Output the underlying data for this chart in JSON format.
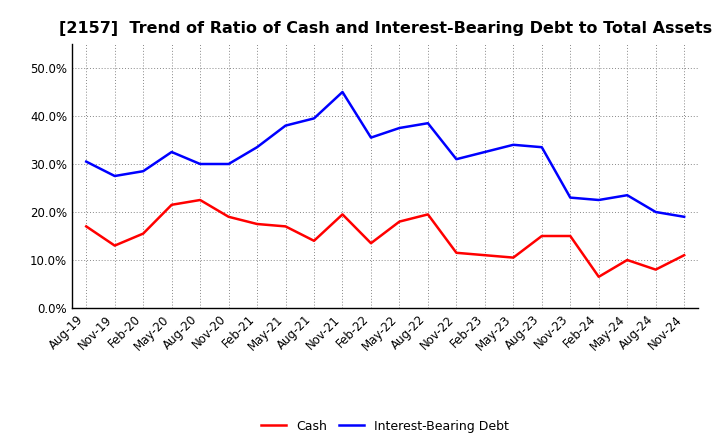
{
  "title": "[2157]  Trend of Ratio of Cash and Interest-Bearing Debt to Total Assets",
  "labels": [
    "Aug-19",
    "Nov-19",
    "Feb-20",
    "May-20",
    "Aug-20",
    "Nov-20",
    "Feb-21",
    "May-21",
    "Aug-21",
    "Nov-21",
    "Feb-22",
    "May-22",
    "Aug-22",
    "Nov-22",
    "Feb-23",
    "May-23",
    "Aug-23",
    "Nov-23",
    "Feb-24",
    "May-24",
    "Aug-24",
    "Nov-24"
  ],
  "cash": [
    0.17,
    0.13,
    0.155,
    0.215,
    0.225,
    0.19,
    0.175,
    0.17,
    0.14,
    0.195,
    0.135,
    0.18,
    0.195,
    0.115,
    0.11,
    0.105,
    0.15,
    0.15,
    0.065,
    0.1,
    0.08,
    0.11
  ],
  "interest_bearing_debt": [
    0.305,
    0.275,
    0.285,
    0.325,
    0.3,
    0.3,
    0.335,
    0.38,
    0.395,
    0.45,
    0.355,
    0.375,
    0.385,
    0.31,
    0.325,
    0.34,
    0.335,
    0.23,
    0.225,
    0.235,
    0.2,
    0.19
  ],
  "cash_color": "#ff0000",
  "debt_color": "#0000ff",
  "cash_label": "Cash",
  "debt_label": "Interest-Bearing Debt",
  "ylim": [
    0.0,
    0.55
  ],
  "yticks": [
    0.0,
    0.1,
    0.2,
    0.3,
    0.4,
    0.5
  ],
  "background_color": "#ffffff",
  "grid_color": "#888888",
  "title_fontsize": 11.5,
  "tick_fontsize": 8.5,
  "legend_fontsize": 9
}
